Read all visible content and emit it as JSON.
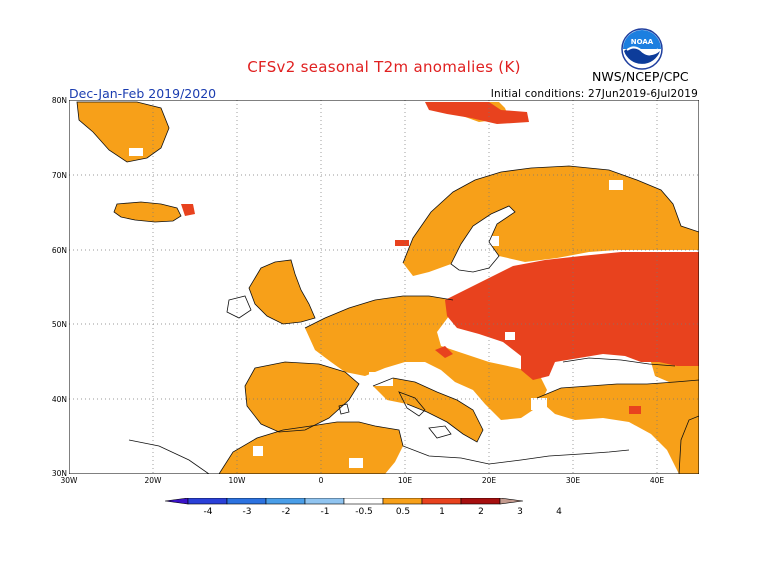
{
  "header": {
    "title": "CFSv2 seasonal T2m anomalies (K)",
    "agency": "NWS/NCEP/CPC",
    "logo_text": "NOAA",
    "period": "Dec-Jan-Feb 2019/2020",
    "initial_conditions": "Initial conditions: 27Jun2019-6Jul2019"
  },
  "axes": {
    "lat_labels": [
      "80N",
      "70N",
      "60N",
      "50N",
      "40N",
      "30N"
    ],
    "lon_labels": [
      "30W",
      "20W",
      "10W",
      "0",
      "10E",
      "20E",
      "30E",
      "40E"
    ],
    "lat_range": [
      30,
      80
    ],
    "lon_range": [
      -30,
      45
    ],
    "grid": "dotted"
  },
  "colorbar": {
    "labels": [
      "-4",
      "-3",
      "-2",
      "-1",
      "-0.5",
      "0.5",
      "1",
      "2",
      "3",
      "4"
    ],
    "colors": [
      "#3a12c8",
      "#2a40d8",
      "#2c72e0",
      "#4a9ee8",
      "#90c4f0",
      "#ffffff",
      "#f7a019",
      "#e8421e",
      "#a60f0f",
      "#c49a8e"
    ],
    "extend": "both"
  },
  "anomaly_colors": {
    "none": "#ffffff",
    "warm_0_5_to_1": "#f7a019",
    "warm_1_to_2": "#e8421e"
  }
}
